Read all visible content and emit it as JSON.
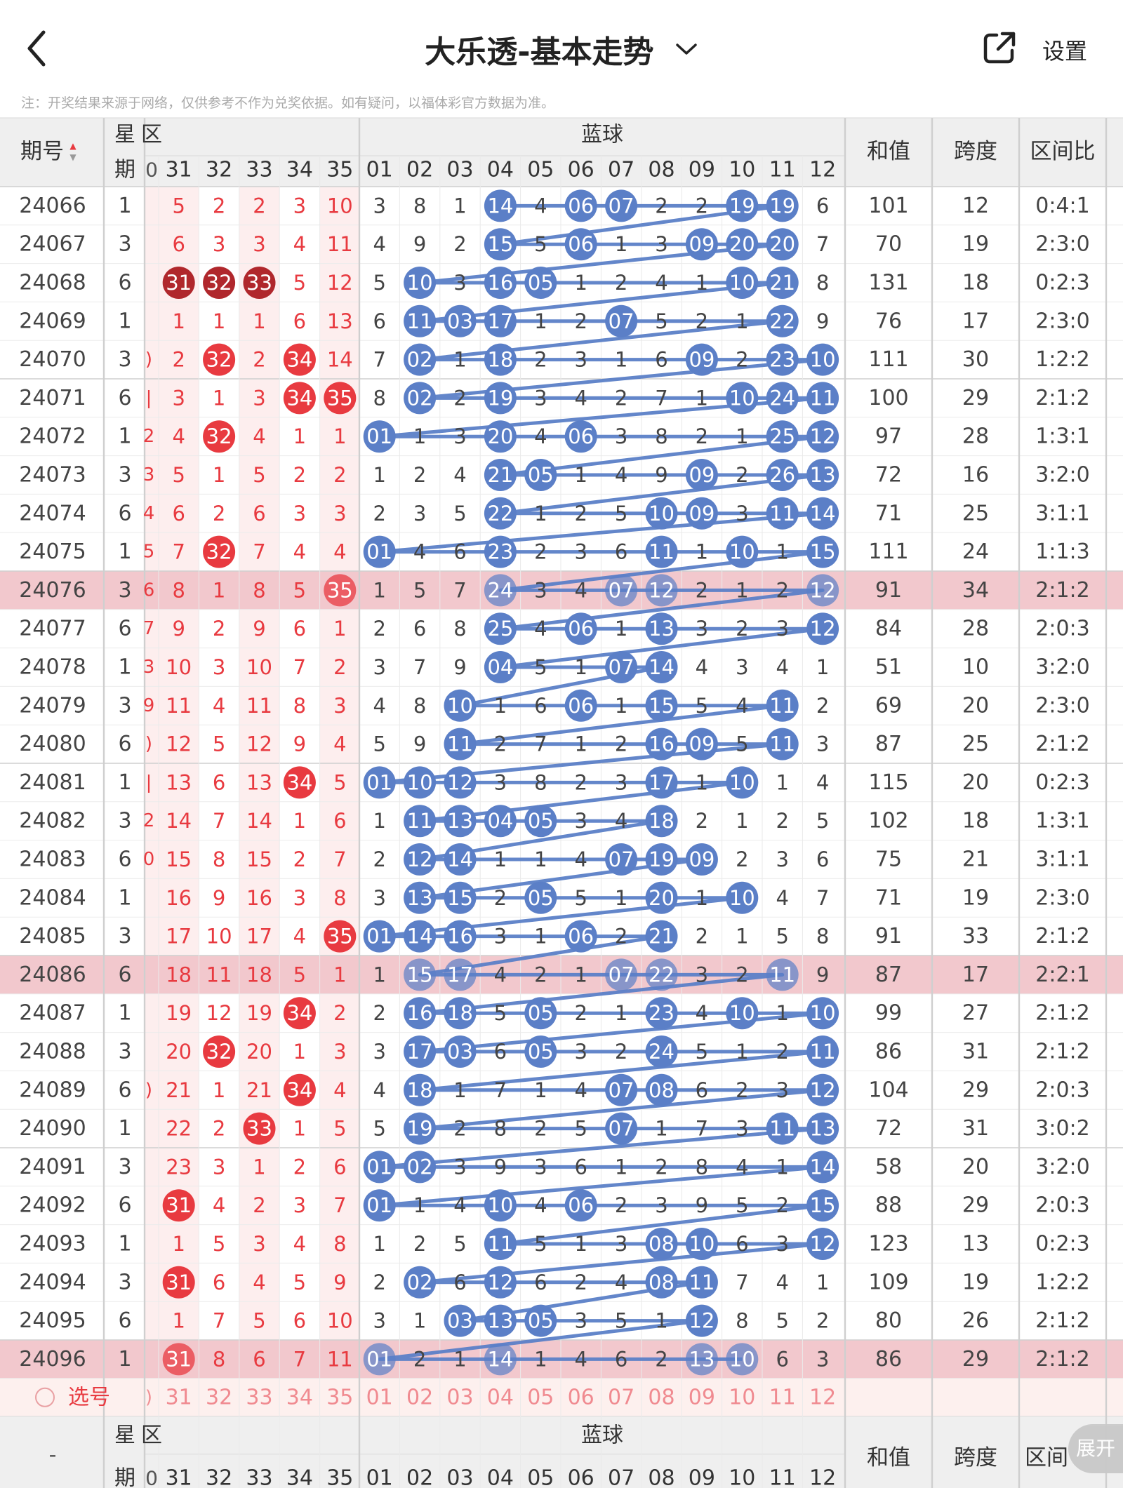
{
  "header": {
    "title": "大乐透-基本走势",
    "settings_label": "设置",
    "icons": {
      "back": "chevron-left-icon",
      "dropdown": "chevron-down-icon",
      "share": "share-icon"
    }
  },
  "note": "注：开奖结果来源于网络，仅供参考不作为兑奖依据。如有疑问，以福体彩官方数据为准。",
  "table": {
    "col_issue": "期号",
    "sort_indicator": "▲▼",
    "col_weekday": [
      "星",
      "期"
    ],
    "front_zone_label": "区",
    "back_zone_label": "蓝球",
    "front_partial_header": "0",
    "front_headers": [
      "31",
      "32",
      "33",
      "34",
      "35"
    ],
    "back_headers": [
      "01",
      "02",
      "03",
      "04",
      "05",
      "06",
      "07",
      "08",
      "09",
      "10",
      "11",
      "12"
    ],
    "col_sum": "和值",
    "col_span": "跨度",
    "col_ratio": "区间比",
    "rows": [
      {
        "issue": "24066",
        "week": "1",
        "clip": "",
        "front": [
          "5",
          "2",
          "2",
          "3",
          "10"
        ],
        "front_hit": [],
        "back": [
          "3",
          "8",
          "1",
          "14",
          "4",
          "06",
          "07",
          "2",
          "2",
          "19",
          "19",
          "6"
        ],
        "sum": "101",
        "span": "12",
        "ratio": "0:4:1"
      },
      {
        "issue": "24067",
        "week": "3",
        "clip": "",
        "front": [
          "6",
          "3",
          "3",
          "4",
          "11"
        ],
        "front_hit": [],
        "back": [
          "4",
          "9",
          "2",
          "15",
          "5",
          "06",
          "1",
          "3",
          "09",
          "20",
          "20",
          "7"
        ],
        "sum": "70",
        "span": "19",
        "ratio": "2:3:0"
      },
      {
        "issue": "24068",
        "week": "6",
        "clip": "",
        "front": [
          "31",
          "32",
          "33",
          "5",
          "12"
        ],
        "front_hit": [
          0,
          1,
          2
        ],
        "back": [
          "5",
          "10",
          "3",
          "16",
          "05",
          "1",
          "2",
          "4",
          "1",
          "10",
          "21",
          "8"
        ],
        "sum": "131",
        "span": "18",
        "ratio": "0:2:3"
      },
      {
        "issue": "24069",
        "week": "1",
        "clip": "",
        "front": [
          "1",
          "1",
          "1",
          "6",
          "13"
        ],
        "front_hit": [],
        "back": [
          "6",
          "11",
          "03",
          "17",
          "1",
          "2",
          "07",
          "5",
          "2",
          "1",
          "22",
          "9"
        ],
        "sum": "76",
        "span": "17",
        "ratio": "2:3:0"
      },
      {
        "issue": "24070",
        "week": "3",
        "clip": ")",
        "front": [
          "2",
          "32",
          "2",
          "34",
          "14"
        ],
        "front_hit": [
          1,
          3
        ],
        "back": [
          "7",
          "02",
          "1",
          "18",
          "2",
          "3",
          "1",
          "6",
          "09",
          "2",
          "23",
          "10"
        ],
        "sum": "111",
        "span": "30",
        "ratio": "1:2:2"
      },
      {
        "issue": "24071",
        "week": "6",
        "clip": "|",
        "front": [
          "3",
          "1",
          "3",
          "34",
          "35"
        ],
        "front_hit": [
          3,
          4
        ],
        "back": [
          "8",
          "02",
          "2",
          "19",
          "3",
          "4",
          "2",
          "7",
          "1",
          "10",
          "24",
          "11"
        ],
        "sum": "100",
        "span": "29",
        "ratio": "2:1:2"
      },
      {
        "issue": "24072",
        "week": "1",
        "clip": "2",
        "front": [
          "4",
          "32",
          "4",
          "1",
          "1"
        ],
        "front_hit": [
          1
        ],
        "back": [
          "01",
          "1",
          "3",
          "20",
          "4",
          "06",
          "3",
          "8",
          "2",
          "1",
          "25",
          "12"
        ],
        "sum": "97",
        "span": "28",
        "ratio": "1:3:1"
      },
      {
        "issue": "24073",
        "week": "3",
        "clip": "3",
        "front": [
          "5",
          "1",
          "5",
          "2",
          "2"
        ],
        "front_hit": [],
        "back": [
          "1",
          "2",
          "4",
          "21",
          "05",
          "1",
          "4",
          "9",
          "09",
          "2",
          "26",
          "13"
        ],
        "sum": "72",
        "span": "16",
        "ratio": "3:2:0"
      },
      {
        "issue": "24074",
        "week": "6",
        "clip": "4",
        "front": [
          "6",
          "2",
          "6",
          "3",
          "3"
        ],
        "front_hit": [],
        "back": [
          "2",
          "3",
          "5",
          "22",
          "1",
          "2",
          "5",
          "10",
          "09",
          "3",
          "11",
          "14"
        ],
        "sum": "71",
        "span": "25",
        "ratio": "3:1:1"
      },
      {
        "issue": "24075",
        "week": "1",
        "clip": "5",
        "front": [
          "7",
          "32",
          "7",
          "4",
          "4"
        ],
        "front_hit": [
          1
        ],
        "back": [
          "01",
          "4",
          "6",
          "23",
          "2",
          "3",
          "6",
          "11",
          "1",
          "10",
          "1",
          "15"
        ],
        "sum": "111",
        "span": "24",
        "ratio": "1:1:3"
      },
      {
        "issue": "24076",
        "week": "3",
        "clip": "6",
        "front": [
          "8",
          "1",
          "8",
          "5",
          "35"
        ],
        "front_hit": [
          4
        ],
        "back": [
          "1",
          "5",
          "7",
          "24",
          "3",
          "4",
          "07",
          "12",
          "2",
          "1",
          "2",
          "12"
        ],
        "sum": "91",
        "span": "34",
        "ratio": "2:1:2"
      },
      {
        "issue": "24077",
        "week": "6",
        "clip": "7",
        "front": [
          "9",
          "2",
          "9",
          "6",
          "1"
        ],
        "front_hit": [],
        "back": [
          "2",
          "6",
          "8",
          "25",
          "4",
          "06",
          "1",
          "13",
          "3",
          "2",
          "3",
          "12"
        ],
        "sum": "84",
        "span": "28",
        "ratio": "2:0:3"
      },
      {
        "issue": "24078",
        "week": "1",
        "clip": "3",
        "front": [
          "10",
          "3",
          "10",
          "7",
          "2"
        ],
        "front_hit": [],
        "back": [
          "3",
          "7",
          "9",
          "04",
          "5",
          "1",
          "07",
          "14",
          "4",
          "3",
          "4",
          "1"
        ],
        "sum": "51",
        "span": "10",
        "ratio": "3:2:0"
      },
      {
        "issue": "24079",
        "week": "3",
        "clip": "9",
        "front": [
          "11",
          "4",
          "11",
          "8",
          "3"
        ],
        "front_hit": [],
        "back": [
          "4",
          "8",
          "10",
          "1",
          "6",
          "06",
          "1",
          "15",
          "5",
          "4",
          "11",
          "2"
        ],
        "sum": "69",
        "span": "20",
        "ratio": "2:3:0"
      },
      {
        "issue": "24080",
        "week": "6",
        "clip": ")",
        "front": [
          "12",
          "5",
          "12",
          "9",
          "4"
        ],
        "front_hit": [],
        "back": [
          "5",
          "9",
          "11",
          "2",
          "7",
          "1",
          "2",
          "16",
          "09",
          "5",
          "11",
          "3"
        ],
        "sum": "87",
        "span": "25",
        "ratio": "2:1:2"
      },
      {
        "issue": "24081",
        "week": "1",
        "clip": "|",
        "front": [
          "13",
          "6",
          "13",
          "34",
          "5"
        ],
        "front_hit": [
          3
        ],
        "back": [
          "01",
          "10",
          "12",
          "3",
          "8",
          "2",
          "3",
          "17",
          "1",
          "10",
          "1",
          "4"
        ],
        "sum": "115",
        "span": "20",
        "ratio": "0:2:3"
      },
      {
        "issue": "24082",
        "week": "3",
        "clip": "2",
        "front": [
          "14",
          "7",
          "14",
          "1",
          "6"
        ],
        "front_hit": [],
        "back": [
          "1",
          "11",
          "13",
          "04",
          "05",
          "3",
          "4",
          "18",
          "2",
          "1",
          "2",
          "5"
        ],
        "sum": "102",
        "span": "18",
        "ratio": "1:3:1"
      },
      {
        "issue": "24083",
        "week": "6",
        "clip": "0",
        "front": [
          "15",
          "8",
          "15",
          "2",
          "7"
        ],
        "front_hit": [],
        "back": [
          "2",
          "12",
          "14",
          "1",
          "1",
          "4",
          "07",
          "19",
          "09",
          "2",
          "3",
          "6"
        ],
        "sum": "75",
        "span": "21",
        "ratio": "3:1:1"
      },
      {
        "issue": "24084",
        "week": "1",
        "clip": "",
        "front": [
          "16",
          "9",
          "16",
          "3",
          "8"
        ],
        "front_hit": [],
        "back": [
          "3",
          "13",
          "15",
          "2",
          "05",
          "5",
          "1",
          "20",
          "1",
          "10",
          "4",
          "7"
        ],
        "sum": "71",
        "span": "19",
        "ratio": "2:3:0"
      },
      {
        "issue": "24085",
        "week": "3",
        "clip": "",
        "front": [
          "17",
          "10",
          "17",
          "4",
          "35"
        ],
        "front_hit": [
          4
        ],
        "back": [
          "01",
          "14",
          "16",
          "3",
          "1",
          "06",
          "2",
          "21",
          "2",
          "1",
          "5",
          "8"
        ],
        "sum": "91",
        "span": "33",
        "ratio": "2:1:2"
      },
      {
        "issue": "24086",
        "week": "6",
        "clip": "",
        "front": [
          "18",
          "11",
          "18",
          "5",
          "1"
        ],
        "front_hit": [],
        "back": [
          "1",
          "15",
          "17",
          "4",
          "2",
          "1",
          "07",
          "22",
          "3",
          "2",
          "11",
          "9"
        ],
        "sum": "87",
        "span": "17",
        "ratio": "2:2:1"
      },
      {
        "issue": "24087",
        "week": "1",
        "clip": "",
        "front": [
          "19",
          "12",
          "19",
          "34",
          "2"
        ],
        "front_hit": [
          3
        ],
        "back": [
          "2",
          "16",
          "18",
          "5",
          "05",
          "2",
          "1",
          "23",
          "4",
          "10",
          "1",
          "10"
        ],
        "sum": "99",
        "span": "27",
        "ratio": "2:1:2"
      },
      {
        "issue": "24088",
        "week": "3",
        "clip": "",
        "front": [
          "20",
          "32",
          "20",
          "1",
          "3"
        ],
        "front_hit": [
          1
        ],
        "back": [
          "3",
          "17",
          "03",
          "6",
          "05",
          "3",
          "2",
          "24",
          "5",
          "1",
          "2",
          "11"
        ],
        "sum": "86",
        "span": "31",
        "ratio": "2:1:2"
      },
      {
        "issue": "24089",
        "week": "6",
        "clip": ")",
        "front": [
          "21",
          "1",
          "21",
          "34",
          "4"
        ],
        "front_hit": [
          3
        ],
        "back": [
          "4",
          "18",
          "1",
          "7",
          "1",
          "4",
          "07",
          "08",
          "6",
          "2",
          "3",
          "12"
        ],
        "sum": "104",
        "span": "29",
        "ratio": "2:0:3"
      },
      {
        "issue": "24090",
        "week": "1",
        "clip": "",
        "front": [
          "22",
          "2",
          "33",
          "1",
          "5"
        ],
        "front_hit": [
          2
        ],
        "back": [
          "5",
          "19",
          "2",
          "8",
          "2",
          "5",
          "07",
          "1",
          "7",
          "3",
          "11",
          "13"
        ],
        "sum": "72",
        "span": "31",
        "ratio": "3:0:2"
      },
      {
        "issue": "24091",
        "week": "3",
        "clip": "",
        "front": [
          "23",
          "3",
          "1",
          "2",
          "6"
        ],
        "front_hit": [],
        "back": [
          "01",
          "02",
          "3",
          "9",
          "3",
          "6",
          "1",
          "2",
          "8",
          "4",
          "1",
          "14"
        ],
        "sum": "58",
        "span": "20",
        "ratio": "3:2:0"
      },
      {
        "issue": "24092",
        "week": "6",
        "clip": "",
        "front": [
          "31",
          "4",
          "2",
          "3",
          "7"
        ],
        "front_hit": [
          0
        ],
        "back": [
          "01",
          "1",
          "4",
          "10",
          "4",
          "06",
          "2",
          "3",
          "9",
          "5",
          "2",
          "15"
        ],
        "sum": "88",
        "span": "29",
        "ratio": "2:0:3"
      },
      {
        "issue": "24093",
        "week": "1",
        "clip": "",
        "front": [
          "1",
          "5",
          "3",
          "4",
          "8"
        ],
        "front_hit": [],
        "back": [
          "1",
          "2",
          "5",
          "11",
          "5",
          "1",
          "3",
          "08",
          "10",
          "6",
          "3",
          "12"
        ],
        "sum": "123",
        "span": "13",
        "ratio": "0:2:3"
      },
      {
        "issue": "24094",
        "week": "3",
        "clip": "",
        "front": [
          "31",
          "6",
          "4",
          "5",
          "9"
        ],
        "front_hit": [
          0
        ],
        "back": [
          "2",
          "02",
          "6",
          "12",
          "6",
          "2",
          "4",
          "08",
          "11",
          "7",
          "4",
          "1"
        ],
        "sum": "109",
        "span": "19",
        "ratio": "1:2:2"
      },
      {
        "issue": "24095",
        "week": "6",
        "clip": "",
        "front": [
          "1",
          "7",
          "5",
          "6",
          "10"
        ],
        "front_hit": [],
        "back": [
          "3",
          "1",
          "03",
          "13",
          "05",
          "3",
          "5",
          "1",
          "12",
          "8",
          "5",
          "2"
        ],
        "sum": "80",
        "span": "26",
        "ratio": "2:1:2"
      },
      {
        "issue": "24096",
        "week": "1",
        "clip": "",
        "front": [
          "31",
          "8",
          "6",
          "7",
          "11"
        ],
        "front_hit": [
          0
        ],
        "back": [
          "01",
          "2",
          "1",
          "14",
          "1",
          "4",
          "6",
          "2",
          "13",
          "10",
          "6",
          "3"
        ],
        "sum": "86",
        "span": "29",
        "ratio": "2:1:2"
      }
    ],
    "highlighted_issues": [
      "24076",
      "24086",
      "24096"
    ],
    "pick_row": {
      "label": "选号",
      "clip": ")",
      "front": [
        "31",
        "32",
        "33",
        "34",
        "35"
      ],
      "back": [
        "01",
        "02",
        "03",
        "04",
        "05",
        "06",
        "07",
        "08",
        "09",
        "10",
        "11",
        "12"
      ]
    },
    "footer": {
      "issue_placeholder": "-",
      "ratio_partial": "区间"
    },
    "expand_label": "展开"
  },
  "colors": {
    "red": "#e83a40",
    "dark_red": "#b0272c",
    "blue": "#5b7fc7",
    "highlight_row": "#f2c8cd",
    "header_bg": "#efefef",
    "front_zebra": "#fdeeee"
  }
}
